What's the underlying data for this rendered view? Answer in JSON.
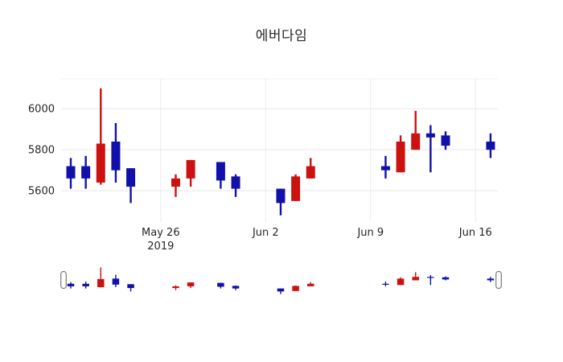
{
  "title": "에버다임",
  "chart_data": {
    "type": "candlestick",
    "title": "에버다임",
    "increasing_color": "#cc1111",
    "decreasing_color": "#1111aa",
    "background": "#ffffff",
    "grid": true,
    "grid_color": "#e8e8e8",
    "axis_text_color": "#262626",
    "legend": "none",
    "y_ticks": [
      5600,
      5800,
      6000
    ],
    "ylim": [
      5471,
      6146
    ],
    "x_ticks": [
      {
        "label": "May 26",
        "sublabel": "2019",
        "day_index": 6
      },
      {
        "label": "Jun 2",
        "sublabel": "",
        "day_index": 13
      },
      {
        "label": "Jun 9",
        "sublabel": "",
        "day_index": 20
      },
      {
        "label": "Jun 16",
        "sublabel": "",
        "day_index": 27
      }
    ],
    "rangeslider": true,
    "ohlc": [
      {
        "date": "May 20",
        "day_index": 0,
        "open": 5720,
        "high": 5760,
        "low": 5610,
        "close": 5660
      },
      {
        "date": "May 21",
        "day_index": 1,
        "open": 5720,
        "high": 5770,
        "low": 5610,
        "close": 5660
      },
      {
        "date": "May 22",
        "day_index": 2,
        "open": 5640,
        "high": 6100,
        "low": 5630,
        "close": 5830
      },
      {
        "date": "May 23",
        "day_index": 3,
        "open": 5840,
        "high": 5930,
        "low": 5640,
        "close": 5700
      },
      {
        "date": "May 24",
        "day_index": 4,
        "open": 5710,
        "high": 5710,
        "low": 5540,
        "close": 5620
      },
      {
        "date": "May 27",
        "day_index": 7,
        "open": 5620,
        "high": 5680,
        "low": 5570,
        "close": 5660
      },
      {
        "date": "May 28",
        "day_index": 8,
        "open": 5660,
        "high": 5750,
        "low": 5620,
        "close": 5750
      },
      {
        "date": "May 30",
        "day_index": 10,
        "open": 5740,
        "high": 5740,
        "low": 5610,
        "close": 5650
      },
      {
        "date": "May 31",
        "day_index": 11,
        "open": 5670,
        "high": 5680,
        "low": 5570,
        "close": 5610
      },
      {
        "date": "Jun 3",
        "day_index": 14,
        "open": 5610,
        "high": 5610,
        "low": 5480,
        "close": 5540
      },
      {
        "date": "Jun 4",
        "day_index": 15,
        "open": 5550,
        "high": 5680,
        "low": 5550,
        "close": 5670
      },
      {
        "date": "Jun 5",
        "day_index": 16,
        "open": 5660,
        "high": 5760,
        "low": 5660,
        "close": 5720
      },
      {
        "date": "Jun 10",
        "day_index": 21,
        "open": 5720,
        "high": 5770,
        "low": 5660,
        "close": 5700
      },
      {
        "date": "Jun 11",
        "day_index": 22,
        "open": 5690,
        "high": 5870,
        "low": 5690,
        "close": 5840
      },
      {
        "date": "Jun 12",
        "day_index": 23,
        "open": 5800,
        "high": 5990,
        "low": 5800,
        "close": 5880
      },
      {
        "date": "Jun 13",
        "day_index": 24,
        "open": 5880,
        "high": 5920,
        "low": 5690,
        "close": 5860
      },
      {
        "date": "Jun 14",
        "day_index": 25,
        "open": 5870,
        "high": 5890,
        "low": 5800,
        "close": 5820
      },
      {
        "date": "Jun 17",
        "day_index": 28,
        "open": 5840,
        "high": 5880,
        "low": 5760,
        "close": 5800
      }
    ]
  }
}
